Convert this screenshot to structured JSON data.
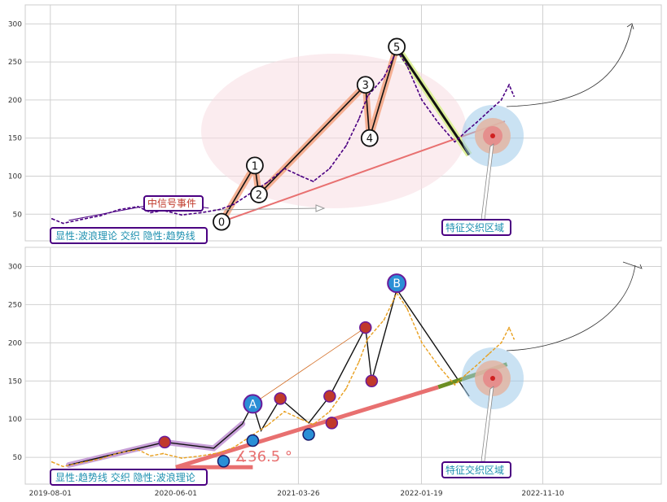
{
  "chart_data": [
    {
      "type": "line",
      "panel": "top",
      "ylim": [
        15,
        325
      ],
      "yticks": [
        50,
        100,
        150,
        200,
        250,
        300
      ],
      "grid": true,
      "annotations": {
        "label_box_1": "显性:波浪理论 交织 隐性:趋势线",
        "event_box": "中信号事件",
        "zone_box": "特征交织区域"
      },
      "wave_points": [
        {
          "label": "0",
          "x": "2020-09-20",
          "y": 40
        },
        {
          "label": "1",
          "x": "2020-12-10",
          "y": 114
        },
        {
          "label": "2",
          "x": "2020-12-20",
          "y": 76
        },
        {
          "label": "3",
          "x": "2021-09-05",
          "y": 220
        },
        {
          "label": "4",
          "x": "2021-09-15",
          "y": 150
        },
        {
          "label": "5",
          "x": "2021-11-20",
          "y": 270
        }
      ],
      "series": [
        {
          "color": "#4b0082",
          "x": [
            "2019-08-05",
            "2019-09-01",
            "2019-10-15",
            "2019-12-01",
            "2020-01-15",
            "2020-03-01",
            "2020-04-01",
            "2020-05-01",
            "2020-06-15",
            "2020-08-01",
            "2020-09-15",
            "2020-10-20",
            "2020-12-01",
            "2021-01-10",
            "2021-02-20",
            "2021-04-01",
            "2021-05-01",
            "2021-06-10",
            "2021-07-20",
            "2021-08-20",
            "2021-09-10",
            "2021-10-20",
            "2021-11-20",
            "2021-12-15",
            "2022-01-20",
            "2022-03-01",
            "2022-04-10",
            "2022-05-10",
            "2022-06-01",
            "2022-07-01",
            "2022-08-01",
            "2022-08-20",
            "2022-09-01"
          ],
          "values": [
            44,
            38,
            43,
            48,
            56,
            60,
            52,
            55,
            49,
            52,
            56,
            63,
            78,
            92,
            110,
            100,
            93,
            110,
            140,
            175,
            205,
            230,
            265,
            245,
            200,
            170,
            145,
            160,
            170,
            185,
            200,
            220,
            205
          ]
        }
      ]
    },
    {
      "type": "line",
      "panel": "bottom",
      "ylim": [
        15,
        325
      ],
      "yticks": [
        50,
        100,
        150,
        200,
        250,
        300
      ],
      "grid": true,
      "x_tick_labels": [
        "2019-08-01",
        "2020-06-01",
        "2021-03-26",
        "2022-01-19",
        "2022-11-10"
      ],
      "annotations": {
        "label_box_2": "显性:趋势线 交织 隐性:波浪理论",
        "zone_box": "特征交织区域",
        "angle_label": "∡36.5 °"
      },
      "wave_points": [
        {
          "label": "A",
          "x": "2020-12-05",
          "y": 120
        },
        {
          "label": "B",
          "x": "2021-11-20",
          "y": 278
        }
      ],
      "series": [
        {
          "color": "#e8a020",
          "x": [
            "2019-08-05",
            "2019-09-01",
            "2019-10-15",
            "2019-12-01",
            "2020-01-15",
            "2020-03-01",
            "2020-04-01",
            "2020-05-01",
            "2020-06-15",
            "2020-08-01",
            "2020-09-15",
            "2020-10-20",
            "2020-12-01",
            "2021-01-10",
            "2021-02-20",
            "2021-04-01",
            "2021-05-01",
            "2021-06-10",
            "2021-07-20",
            "2021-08-20",
            "2021-09-10",
            "2021-10-20",
            "2021-11-20",
            "2021-12-15",
            "2022-01-20",
            "2022-03-01",
            "2022-04-10",
            "2022-05-10",
            "2022-06-01",
            "2022-07-01",
            "2022-08-01",
            "2022-08-20",
            "2022-09-01"
          ],
          "values": [
            44,
            38,
            43,
            48,
            56,
            60,
            52,
            55,
            49,
            52,
            56,
            63,
            78,
            92,
            110,
            100,
            93,
            110,
            140,
            175,
            205,
            230,
            265,
            245,
            200,
            170,
            145,
            160,
            170,
            185,
            200,
            220,
            205
          ]
        }
      ]
    }
  ]
}
